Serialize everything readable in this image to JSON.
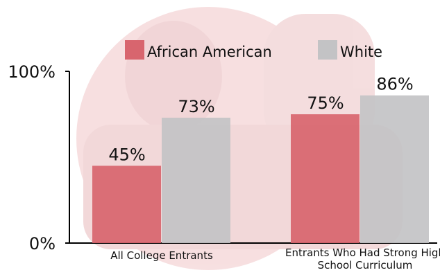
{
  "chart_data": {
    "type": "bar",
    "categories": [
      "All College Entrants",
      "Entrants Who Had Strong High School Curriculum"
    ],
    "series": [
      {
        "name": "African American",
        "color": "#d8656e",
        "values": [
          45,
          75
        ],
        "value_labels": [
          "45%",
          "75%"
        ]
      },
      {
        "name": "White",
        "color": "#c3c3c5",
        "values": [
          73,
          86
        ],
        "value_labels": [
          "73%",
          "86%"
        ]
      }
    ],
    "ylim": [
      0,
      100
    ],
    "yticks": [
      {
        "value": 0,
        "label": "0%"
      },
      {
        "value": 100,
        "label": "100%"
      }
    ],
    "legend": "top"
  }
}
